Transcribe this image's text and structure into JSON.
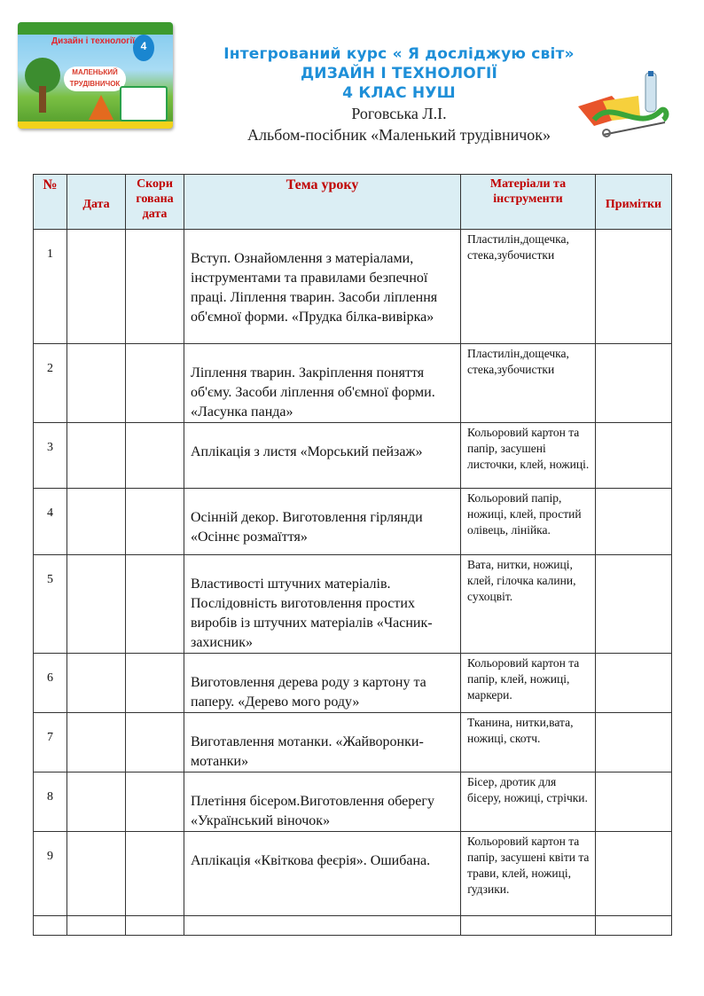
{
  "header": {
    "line1": "Інтегрований курс « Я досліджую світ»",
    "line2": "ДИЗАЙН І ТЕХНОЛОГІЇ",
    "line3": "4 КЛАС  НУШ",
    "author": "Роговська Л.І.",
    "album": "Альбом-посібник «Маленький трудівничок»"
  },
  "cover": {
    "title": "Дизайн і технології",
    "grade": "4",
    "name": "Маленький трудівничок"
  },
  "colors": {
    "title": "#1e8fd8",
    "header_text": "#c00000",
    "header_bg": "#dbeef4"
  },
  "table": {
    "columns": [
      "№",
      "Дата",
      "Скори гована дата",
      "Тема уроку",
      "Матеріали та інструменти",
      "Примітки"
    ],
    "rows": [
      {
        "num": "1",
        "topic": "Вступ. Ознайомлення з матеріалами, інструментами та правилами безпечної праці. Ліплення тварин. Засоби ліплення об'ємної форми. «Прудка білка-вивірка»",
        "materials": "Пластилін,дощечка, стека,зубочистки"
      },
      {
        "num": "2",
        "topic": "Ліплення тварин. Закріплення поняття об'єму. Засоби ліплення об'ємної форми. «Ласунка панда»",
        "materials": "Пластилін,дощечка, стека,зубочистки"
      },
      {
        "num": "3",
        "topic": "Аплікація з листя «Морський пейзаж»",
        "materials": "Кольоровий картон та папір, засушені листочки, клей, ножиці."
      },
      {
        "num": "4",
        "topic": "Осінній декор. Виготовлення гірлянди  «Осіннє розмаїття»",
        "materials": "Кольоровий  папір, ножиці, клей, простий олівець, лінійка."
      },
      {
        "num": "5",
        "topic": "Властивості штучних матеріалів. Послідовність виготовлення простих виробів із штучних матеріалів «Часник-захисник»",
        "materials": "Вата, нитки, ножиці, клей, гілочка калини, сухоцвіт."
      },
      {
        "num": "6",
        "topic": "Виготовлення дерева роду  з картону та паперу. «Дерево мого роду»",
        "materials": "Кольоровий картон та папір, клей, ножиці, маркери."
      },
      {
        "num": "7",
        "topic": "Виготавлення мотанки. «Жайворонки-мотанки»",
        "materials": "Тканина, нитки,вата, ножиці, скотч."
      },
      {
        "num": "8",
        "topic": "Плетіння бісером.Виготовлення оберегу «Український віночок»",
        "materials": "Бісер, дротик для бісеру, ножиці, стрічки."
      },
      {
        "num": "9",
        "topic": "Аплікація  «Квіткова феєрія». Ошибана.",
        "materials": "Кольоровий картон та папір, засушені квіти та трави, клей, ножиці, ґудзики."
      }
    ]
  }
}
